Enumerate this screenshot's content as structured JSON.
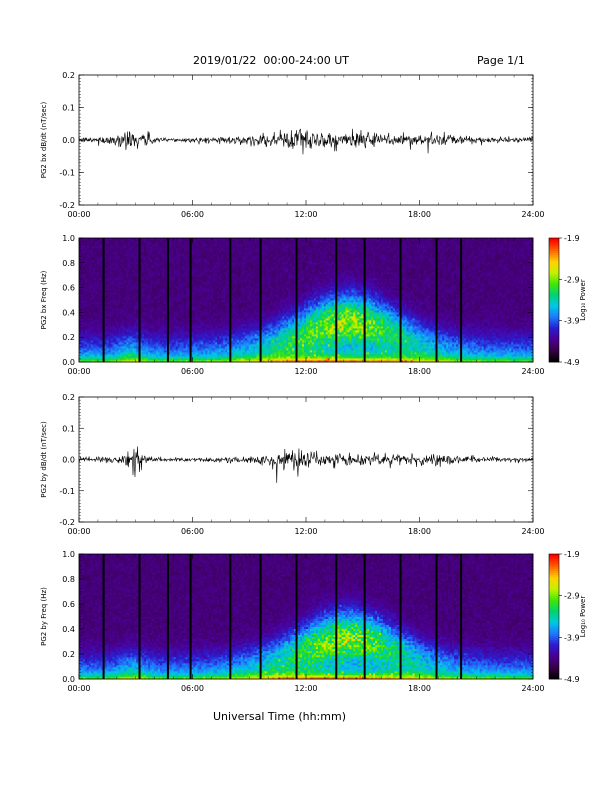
{
  "header": {
    "title": "2019/01/22  00:00-24:00 UT",
    "page": "Page 1/1"
  },
  "footer": {
    "xlabel": "Universal Time (hh:mm)"
  },
  "colors": {
    "trace": "#000000",
    "colormap": [
      "#000000",
      "#3a0048",
      "#4b0096",
      "#2a1ed0",
      "#1f78ff",
      "#00c8e6",
      "#00d26e",
      "#46e600",
      "#c8f000",
      "#ffd200",
      "#ff6400",
      "#ff0000"
    ]
  },
  "chart_data": [
    {
      "type": "line",
      "ylabel": "PG2 bx dB/dt (nT/sec)",
      "xlim": [
        0,
        24
      ],
      "ylim": [
        -0.2,
        0.2
      ],
      "x_ticks": [
        "00:00",
        "06:00",
        "12:00",
        "18:00",
        "24:00"
      ],
      "y_ticks": [
        "-0.2",
        "-0.1",
        "0.0",
        "0.1",
        "0.2"
      ],
      "envelope": {
        "t_hours": [
          0,
          1,
          2,
          2.6,
          3,
          3.4,
          4,
          5,
          6,
          7,
          8,
          9,
          10,
          11,
          11.5,
          12,
          12.5,
          13,
          14,
          15,
          16,
          17,
          18,
          19,
          20,
          21,
          22,
          23,
          24
        ],
        "amplitude": [
          0.008,
          0.01,
          0.02,
          0.045,
          0.02,
          0.035,
          0.01,
          0.008,
          0.008,
          0.01,
          0.012,
          0.015,
          0.02,
          0.035,
          0.05,
          0.045,
          0.03,
          0.025,
          0.028,
          0.025,
          0.022,
          0.025,
          0.022,
          0.02,
          0.015,
          0.012,
          0.01,
          0.008,
          0.007
        ]
      }
    },
    {
      "type": "heatmap",
      "ylabel": "PG2 bx Freq (Hz)",
      "xlim": [
        0,
        24
      ],
      "ylim": [
        0,
        1.0
      ],
      "x_ticks": [
        "00:00",
        "06:00",
        "12:00",
        "18:00",
        "24:00"
      ],
      "y_ticks": [
        "0.0",
        "0.2",
        "0.4",
        "0.6",
        "0.8",
        "1.0"
      ],
      "colorbar": {
        "label": "Log₁₀ Power",
        "ticks": [
          "-1.9",
          "-2.9",
          "-3.9",
          "-4.9"
        ],
        "range": [
          -4.9,
          -1.9
        ]
      },
      "data_gaps_hours": [
        1.3,
        3.2,
        4.7,
        5.9,
        8.0,
        9.6,
        11.5,
        13.6,
        15.1,
        17.0,
        18.9,
        20.2
      ]
    },
    {
      "type": "line",
      "ylabel": "PG2 by dB/dt (nT/sec)",
      "xlim": [
        0,
        24
      ],
      "ylim": [
        -0.2,
        0.2
      ],
      "x_ticks": [
        "00:00",
        "06:00",
        "12:00",
        "18:00",
        "24:00"
      ],
      "y_ticks": [
        "-0.2",
        "-0.1",
        "0.0",
        "0.1",
        "0.2"
      ],
      "envelope": {
        "t_hours": [
          0,
          1,
          2,
          2.5,
          3,
          3.4,
          4,
          5,
          6,
          7,
          8,
          9,
          10,
          11,
          11.5,
          12,
          12.5,
          13,
          14,
          15,
          16,
          17,
          18,
          19,
          20,
          21,
          22,
          23,
          24
        ],
        "amplitude": [
          0.006,
          0.008,
          0.012,
          0.025,
          0.05,
          0.02,
          0.008,
          0.007,
          0.008,
          0.008,
          0.01,
          0.012,
          0.018,
          0.03,
          0.055,
          0.04,
          0.03,
          0.025,
          0.025,
          0.022,
          0.02,
          0.02,
          0.022,
          0.018,
          0.015,
          0.01,
          0.008,
          0.007,
          0.006
        ]
      }
    },
    {
      "type": "heatmap",
      "ylabel": "PG2 by Freq (Hz)",
      "xlim": [
        0,
        24
      ],
      "ylim": [
        0,
        1.0
      ],
      "x_ticks": [
        "00:00",
        "06:00",
        "12:00",
        "18:00",
        "24:00"
      ],
      "y_ticks": [
        "0.0",
        "0.2",
        "0.4",
        "0.6",
        "0.8",
        "1.0"
      ],
      "colorbar": {
        "label": "Log₁₀ Power",
        "ticks": [
          "-1.9",
          "-2.9",
          "-3.9",
          "-4.9"
        ],
        "range": [
          -4.9,
          -1.9
        ]
      },
      "data_gaps_hours": [
        1.3,
        3.2,
        4.7,
        5.9,
        8.0,
        9.6,
        11.5,
        13.6,
        15.1,
        17.0,
        18.9,
        20.2
      ]
    }
  ]
}
